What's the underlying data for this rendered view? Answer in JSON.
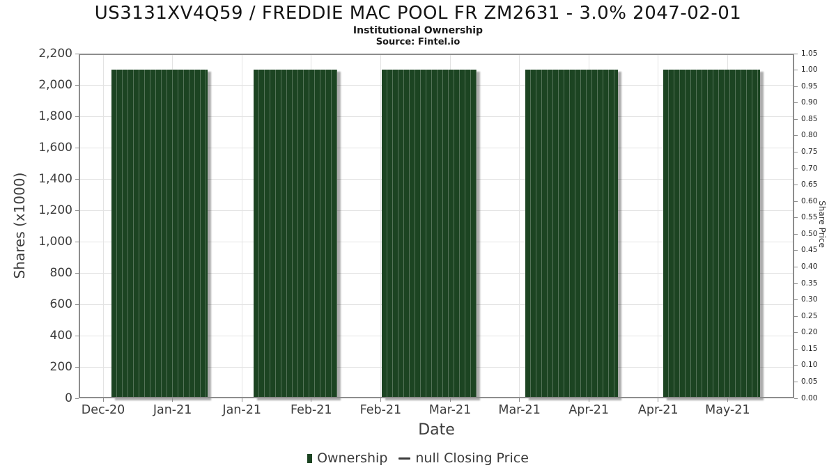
{
  "header": {
    "title": "US3131XV4Q59 / FREDDIE MAC POOL FR ZM2631 - 3.0% 2047-02-01",
    "subtitle": "Institutional Ownership",
    "source": "Source: Fintel.io"
  },
  "chart_data": {
    "type": "bar",
    "title": "US3131XV4Q59 / FREDDIE MAC POOL FR ZM2631 - 3.0% 2047-02-01",
    "subtitle": "Institutional Ownership",
    "source": "Source: Fintel.io",
    "xlabel": "Date",
    "ylabel": "Shares (x1000)",
    "y2label": "Share Price",
    "ylim": [
      0,
      2200
    ],
    "y2lim": [
      0,
      1.05
    ],
    "grid": true,
    "legend_position": "bottom",
    "x_ticks": [
      "Dec-20",
      "Jan-21",
      "Jan-21",
      "Feb-21",
      "Feb-21",
      "Mar-21",
      "Mar-21",
      "Apr-21",
      "Apr-21",
      "May-21"
    ],
    "y_ticks_left": [
      "0",
      "200",
      "400",
      "600",
      "800",
      "1,000",
      "1,200",
      "1,400",
      "1,600",
      "1,800",
      "2,000",
      "2,200"
    ],
    "y_ticks_right": [
      "0.00",
      "0.05",
      "0.10",
      "0.15",
      "0.20",
      "0.25",
      "0.30",
      "0.35",
      "0.40",
      "0.45",
      "0.50",
      "0.55",
      "0.60",
      "0.65",
      "0.70",
      "0.75",
      "0.80",
      "0.85",
      "0.90",
      "0.95",
      "1.00",
      "1.05"
    ],
    "series": [
      {
        "name": "Ownership",
        "type": "bar",
        "color": "#1c4422",
        "units": "shares x1000",
        "segments": [
          {
            "x0": 0.046,
            "x1": 0.18,
            "value": 2100
          },
          {
            "x0": 0.244,
            "x1": 0.361,
            "value": 2100
          },
          {
            "x0": 0.424,
            "x1": 0.556,
            "value": 2100
          },
          {
            "x0": 0.624,
            "x1": 0.754,
            "value": 2100
          },
          {
            "x0": 0.817,
            "x1": 0.952,
            "value": 2100
          }
        ]
      },
      {
        "name": "null Closing Price",
        "type": "line",
        "color": "#3a3a3a",
        "values": []
      }
    ],
    "legend": [
      {
        "label": "Ownership",
        "marker": "square",
        "color": "#1c4422"
      },
      {
        "label": "null Closing Price",
        "marker": "line",
        "color": "#3a3a3a"
      }
    ]
  }
}
